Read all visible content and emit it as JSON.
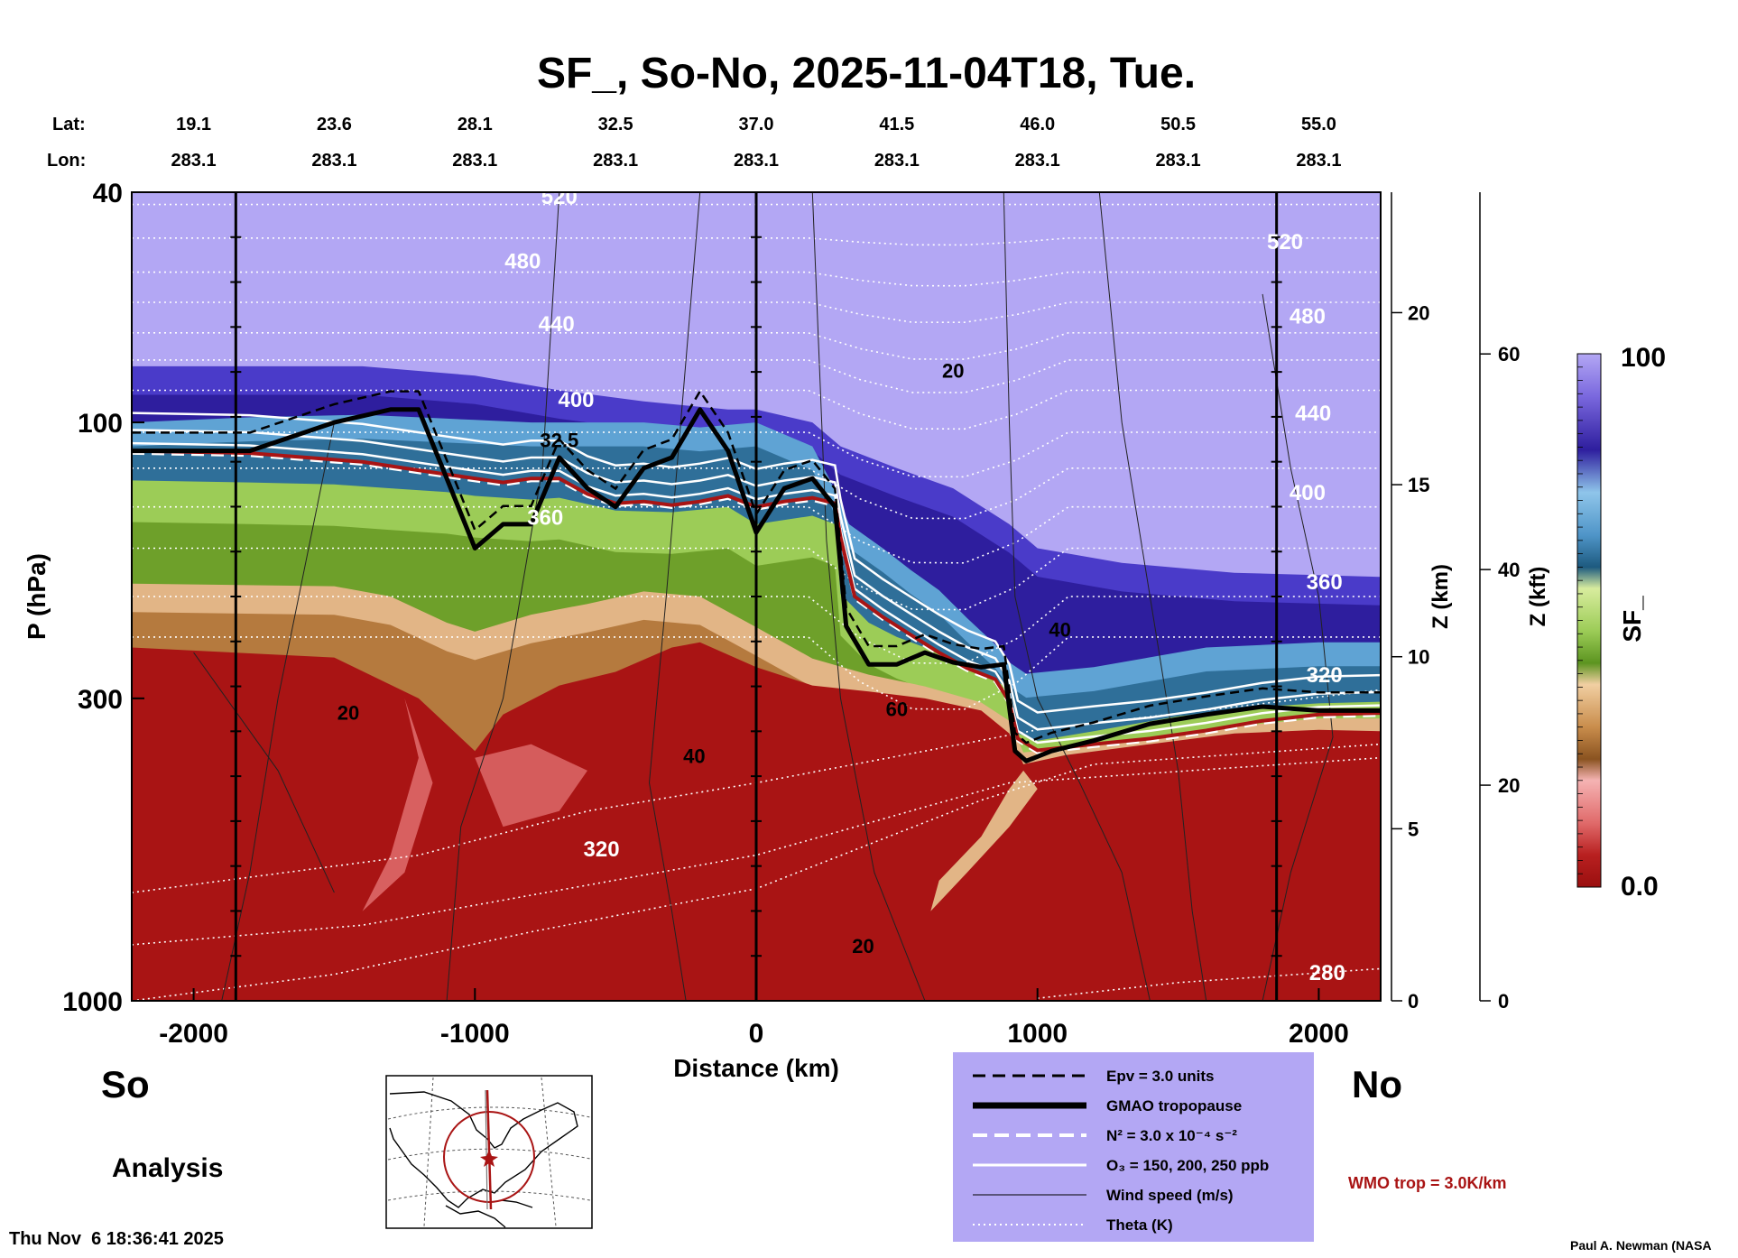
{
  "chart_data": {
    "type": "heatmap",
    "title": "SF_, So-No, 2025-11-04T18, Tue.",
    "xlabel": "Distance (km)",
    "ylabel": "P (hPa)",
    "z_km_label": "Z (km)",
    "z_kft_label": "Z (kft)",
    "colorbar_label": "SF_",
    "colorbar_max_label": "100",
    "colorbar_min_label": "0.0",
    "xlim": [
      -2220,
      2220
    ],
    "ylim_hPa": [
      1000,
      40
    ],
    "x_ticks": [
      -2000,
      -1000,
      0,
      1000,
      2000
    ],
    "x_tick_labels": [
      "-2000",
      "-1000",
      "0",
      "1000",
      "2000"
    ],
    "y_ticks_hPa": [
      40,
      100,
      300,
      1000
    ],
    "y_tick_labels": [
      "40",
      "100",
      "300",
      "1000"
    ],
    "z_km_ticks": [
      0,
      5,
      10,
      15,
      20
    ],
    "z_km_tick_labels": [
      "0",
      "5",
      "10",
      "15",
      "20"
    ],
    "z_kft_ticks": [
      0,
      20,
      40,
      60
    ],
    "z_kft_tick_labels": [
      "0",
      "20",
      "40",
      "60"
    ],
    "lat_label": "Lat:",
    "lon_label": "Lon:",
    "lat_lon_positions": [
      -2000,
      -1500,
      -1000,
      -500,
      0,
      500,
      1000,
      1500,
      2000
    ],
    "lat_values": [
      "19.1",
      "23.6",
      "28.1",
      "32.5",
      "37.0",
      "41.5",
      "46.0",
      "50.5",
      "55.0"
    ],
    "lon_values": [
      "283.1",
      "283.1",
      "283.1",
      "283.1",
      "283.1",
      "283.1",
      "283.1",
      "283.1",
      "283.1"
    ],
    "vertical_lines_km": [
      -1850,
      0,
      1850
    ],
    "tropopause_hPa": {
      "x": [
        -2220,
        -1800,
        -1500,
        -1300,
        -1200,
        -1100,
        -1000,
        -900,
        -800,
        -700,
        -600,
        -500,
        -400,
        -300,
        -200,
        -100,
        0,
        100,
        200,
        280,
        320,
        400,
        500,
        600,
        700,
        800,
        880,
        920,
        960,
        1050,
        1200,
        1400,
        1600,
        1800,
        2000,
        2220
      ],
      "y": [
        112,
        112,
        100,
        95,
        95,
        125,
        165,
        150,
        150,
        115,
        130,
        140,
        120,
        115,
        95,
        112,
        155,
        130,
        125,
        140,
        225,
        262,
        262,
        250,
        260,
        265,
        262,
        370,
        385,
        370,
        355,
        332,
        320,
        310,
        315,
        315
      ]
    },
    "ozone_surface": {
      "x": [
        -2220,
        -1800,
        -1400,
        -1200,
        -1100,
        -1000,
        -900,
        -800,
        -700,
        -600,
        -500,
        -400,
        -300,
        -200,
        -100,
        0,
        100,
        200,
        280,
        300,
        350,
        450,
        550,
        650,
        750,
        850,
        900,
        930,
        1000,
        1200,
        1400,
        1600,
        1800,
        2000,
        2220
      ],
      "y": [
        112,
        113,
        117,
        121,
        123,
        125,
        127,
        125,
        125,
        133,
        138,
        137,
        139,
        137,
        134,
        140,
        137,
        135,
        138,
        158,
        200,
        217,
        233,
        250,
        266,
        278,
        304,
        352,
        369,
        360,
        352,
        341,
        328,
        320,
        318
      ]
    },
    "sf_fill_boundaries": {
      "red_top_hPa": [
        [
          -2220,
          245
        ],
        [
          -1500,
          255
        ],
        [
          -1200,
          300
        ],
        [
          -1000,
          370
        ],
        [
          -900,
          320
        ],
        [
          -700,
          285
        ],
        [
          -500,
          270
        ],
        [
          -300,
          245
        ],
        [
          -200,
          240
        ],
        [
          0,
          265
        ],
        [
          200,
          285
        ],
        [
          400,
          292
        ],
        [
          600,
          300
        ],
        [
          800,
          315
        ],
        [
          900,
          345
        ],
        [
          950,
          390
        ],
        [
          1100,
          376
        ],
        [
          1400,
          360
        ],
        [
          1700,
          345
        ],
        [
          2000,
          340
        ],
        [
          2220,
          342
        ]
      ],
      "brown_top_hPa": [
        [
          -2220,
          190
        ],
        [
          -1500,
          192
        ],
        [
          -1300,
          200
        ],
        [
          -1100,
          222
        ],
        [
          -1000,
          230
        ],
        [
          -800,
          215
        ],
        [
          -600,
          206
        ],
        [
          -400,
          196
        ],
        [
          -200,
          200
        ],
        [
          0,
          226
        ],
        [
          200,
          256
        ],
        [
          400,
          273
        ],
        [
          600,
          286
        ],
        [
          800,
          305
        ],
        [
          900,
          328
        ],
        [
          950,
          372
        ],
        [
          1100,
          366
        ],
        [
          1400,
          350
        ],
        [
          1700,
          335
        ],
        [
          2000,
          325
        ],
        [
          2220,
          325
        ]
      ],
      "green_top_hPa": [
        [
          -2220,
          126
        ],
        [
          -1800,
          127
        ],
        [
          -1500,
          128
        ],
        [
          -1300,
          130
        ],
        [
          -1100,
          132
        ],
        [
          -1000,
          134
        ],
        [
          -800,
          136
        ],
        [
          -700,
          135
        ],
        [
          -500,
          142
        ],
        [
          -300,
          143
        ],
        [
          -100,
          140
        ],
        [
          0,
          150
        ],
        [
          200,
          145
        ],
        [
          280,
          150
        ],
        [
          300,
          198
        ],
        [
          400,
          222
        ],
        [
          500,
          235
        ],
        [
          600,
          245
        ],
        [
          700,
          258
        ],
        [
          800,
          270
        ],
        [
          880,
          285
        ],
        [
          930,
          345
        ],
        [
          1000,
          355
        ],
        [
          1200,
          342
        ],
        [
          1500,
          322
        ],
        [
          1800,
          310
        ],
        [
          2000,
          306
        ],
        [
          2220,
          304
        ]
      ],
      "blue_top_hPa": [
        [
          -2220,
          100
        ],
        [
          -1800,
          98
        ],
        [
          -1400,
          97
        ],
        [
          -1200,
          98
        ],
        [
          -1000,
          99
        ],
        [
          -800,
          100
        ],
        [
          -600,
          100
        ],
        [
          -400,
          100
        ],
        [
          -200,
          102
        ],
        [
          0,
          100
        ],
        [
          200,
          110
        ],
        [
          260,
          125
        ],
        [
          330,
          150
        ],
        [
          450,
          165
        ],
        [
          550,
          180
        ],
        [
          650,
          195
        ],
        [
          750,
          218
        ],
        [
          850,
          242
        ],
        [
          900,
          260
        ],
        [
          960,
          272
        ],
        [
          1200,
          265
        ],
        [
          1600,
          245
        ],
        [
          2000,
          240
        ],
        [
          2220,
          240
        ]
      ],
      "indigo_top_hPa": [
        [
          -2220,
          80
        ],
        [
          -1400,
          80
        ],
        [
          -1000,
          83
        ],
        [
          -700,
          88
        ],
        [
          -400,
          92
        ],
        [
          -100,
          95
        ],
        [
          0,
          95
        ],
        [
          200,
          100
        ],
        [
          300,
          110
        ],
        [
          500,
          120
        ],
        [
          700,
          130
        ],
        [
          900,
          150
        ],
        [
          1000,
          165
        ],
        [
          1300,
          175
        ],
        [
          1700,
          182
        ],
        [
          2220,
          185
        ]
      ]
    },
    "sf_colors": {
      "light_purple": "#b3a7f4",
      "indigo": "#4a3bc9",
      "dark_indigo": "#2e1e9e",
      "blue": "#5fa3d4",
      "teal": "#2f6f99",
      "green": "#9ccc57",
      "dark_green": "#6ea02a",
      "tan": "#e2b586",
      "brown": "#b57a3e",
      "red": "#a91414",
      "pink": "#e87a7a"
    },
    "theta_labels": [
      {
        "text": "520",
        "x": -700,
        "p": 41
      },
      {
        "text": "480",
        "x": -830,
        "p": 53
      },
      {
        "text": "440",
        "x": -710,
        "p": 68
      },
      {
        "text": "400",
        "x": -640,
        "p": 92
      },
      {
        "text": "360",
        "x": -750,
        "p": 147
      },
      {
        "text": "320",
        "x": -550,
        "p": 550
      },
      {
        "text": "520",
        "x": 1880,
        "p": 49
      },
      {
        "text": "480",
        "x": 1960,
        "p": 66
      },
      {
        "text": "440",
        "x": 1980,
        "p": 97
      },
      {
        "text": "400",
        "x": 1960,
        "p": 133
      },
      {
        "text": "360",
        "x": 2020,
        "p": 190
      },
      {
        "text": "320",
        "x": 2020,
        "p": 275
      },
      {
        "text": "280",
        "x": 2030,
        "p": 900
      }
    ],
    "wind_labels": [
      {
        "text": "20",
        "x": 700,
        "p": 82
      },
      {
        "text": "40",
        "x": 1080,
        "p": 230
      },
      {
        "text": "60",
        "x": 500,
        "p": 315
      },
      {
        "text": "20",
        "x": -1450,
        "p": 320
      },
      {
        "text": "40",
        "x": -220,
        "p": 380
      },
      {
        "text": "20",
        "x": 380,
        "p": 810
      },
      {
        "text": "32.5",
        "x": -700,
        "p": 108
      }
    ],
    "legend": [
      {
        "label": "Epv = 3.0 units",
        "style": "dashed-black"
      },
      {
        "label": "GMAO tropopause",
        "style": "thick-black"
      },
      {
        "label": "N² = 3.0 x 10⁻⁴ s⁻²",
        "style": "dashed-white"
      },
      {
        "label": "O₃ = 150, 200, 250 ppb",
        "style": "solid-white"
      },
      {
        "label": "Wind speed (m/s)",
        "style": "thin-black"
      },
      {
        "label": "Theta (K)",
        "style": "dotted-white"
      }
    ],
    "legend_bg": "#b3a7f4",
    "wmo_label": "WMO trop = 3.0K/km",
    "wmo_color": "#a91414"
  },
  "labels": {
    "south": "So",
    "north": "No",
    "analysis": "Analysis",
    "timestamp": "Thu Nov  6 18:36:41 2025",
    "credit": "Paul A. Newman (NASA"
  }
}
